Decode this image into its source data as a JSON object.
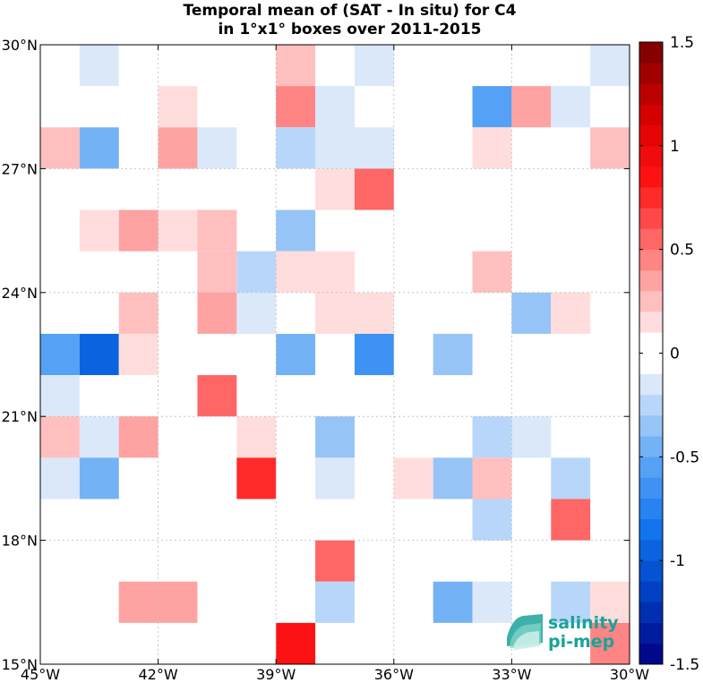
{
  "chart_data": {
    "type": "heatmap",
    "title": "Temporal mean of (SAT - In situ) for C4",
    "subtitle": "in 1°x1° boxes over 2011-2015",
    "xlabel": "",
    "ylabel": "",
    "x_ticks": [
      {
        "value": -45,
        "label": "45°W"
      },
      {
        "value": -42,
        "label": "42°W"
      },
      {
        "value": -39,
        "label": "39°W"
      },
      {
        "value": -36,
        "label": "36°W"
      },
      {
        "value": -33,
        "label": "33°W"
      },
      {
        "value": -30,
        "label": "30°W"
      }
    ],
    "y_ticks": [
      {
        "value": 15,
        "label": "15°N"
      },
      {
        "value": 18,
        "label": "18°N"
      },
      {
        "value": 21,
        "label": "21°N"
      },
      {
        "value": 24,
        "label": "24°N"
      },
      {
        "value": 27,
        "label": "27°N"
      },
      {
        "value": 30,
        "label": "30°N"
      }
    ],
    "xlim": [
      -45,
      -30
    ],
    "ylim": [
      15,
      30
    ],
    "grid": true,
    "colorbar": {
      "vmin": -1.5,
      "vmax": 1.5,
      "step": 0.1,
      "ticks": [
        {
          "value": 1.5,
          "label": "1.5"
        },
        {
          "value": 1.0,
          "label": "1"
        },
        {
          "value": 0.5,
          "label": "0.5"
        },
        {
          "value": 0.0,
          "label": "0"
        },
        {
          "value": -0.5,
          "label": "-0.5"
        },
        {
          "value": -1.0,
          "label": "-1"
        },
        {
          "value": -1.5,
          "label": "-1.5"
        }
      ]
    },
    "cells": [
      {
        "lon": -44,
        "lat": 29,
        "value": -0.15
      },
      {
        "lon": -39,
        "lat": 29,
        "value": 0.25
      },
      {
        "lon": -37,
        "lat": 29,
        "value": -0.15
      },
      {
        "lon": -31,
        "lat": 29,
        "value": -0.15
      },
      {
        "lon": -42,
        "lat": 28,
        "value": 0.15
      },
      {
        "lon": -39,
        "lat": 28,
        "value": 0.45
      },
      {
        "lon": -38,
        "lat": 28,
        "value": -0.15
      },
      {
        "lon": -34,
        "lat": 28,
        "value": -0.55
      },
      {
        "lon": -33,
        "lat": 28,
        "value": 0.35
      },
      {
        "lon": -32,
        "lat": 28,
        "value": -0.15
      },
      {
        "lon": -45,
        "lat": 27,
        "value": 0.25
      },
      {
        "lon": -44,
        "lat": 27,
        "value": -0.45
      },
      {
        "lon": -42,
        "lat": 27,
        "value": 0.35
      },
      {
        "lon": -41,
        "lat": 27,
        "value": -0.15
      },
      {
        "lon": -39,
        "lat": 27,
        "value": -0.25
      },
      {
        "lon": -38,
        "lat": 27,
        "value": -0.15
      },
      {
        "lon": -37,
        "lat": 27,
        "value": -0.15
      },
      {
        "lon": -34,
        "lat": 27,
        "value": 0.15
      },
      {
        "lon": -31,
        "lat": 27,
        "value": 0.25
      },
      {
        "lon": -38,
        "lat": 26,
        "value": 0.15
      },
      {
        "lon": -37,
        "lat": 26,
        "value": 0.55
      },
      {
        "lon": -44,
        "lat": 25,
        "value": 0.15
      },
      {
        "lon": -43,
        "lat": 25,
        "value": 0.35
      },
      {
        "lon": -42,
        "lat": 25,
        "value": 0.15
      },
      {
        "lon": -41,
        "lat": 25,
        "value": 0.25
      },
      {
        "lon": -39,
        "lat": 25,
        "value": -0.35
      },
      {
        "lon": -41,
        "lat": 24,
        "value": 0.25
      },
      {
        "lon": -40,
        "lat": 24,
        "value": -0.25
      },
      {
        "lon": -39,
        "lat": 24,
        "value": 0.15
      },
      {
        "lon": -38,
        "lat": 24,
        "value": 0.15
      },
      {
        "lon": -34,
        "lat": 24,
        "value": 0.25
      },
      {
        "lon": -43,
        "lat": 23,
        "value": 0.25
      },
      {
        "lon": -41,
        "lat": 23,
        "value": 0.35
      },
      {
        "lon": -40,
        "lat": 23,
        "value": -0.15
      },
      {
        "lon": -38,
        "lat": 23,
        "value": 0.15
      },
      {
        "lon": -37,
        "lat": 23,
        "value": 0.15
      },
      {
        "lon": -33,
        "lat": 23,
        "value": -0.35
      },
      {
        "lon": -32,
        "lat": 23,
        "value": 0.15
      },
      {
        "lon": -45,
        "lat": 22,
        "value": -0.55
      },
      {
        "lon": -44,
        "lat": 22,
        "value": -0.95
      },
      {
        "lon": -43,
        "lat": 22,
        "value": 0.15
      },
      {
        "lon": -39,
        "lat": 22,
        "value": -0.45
      },
      {
        "lon": -37,
        "lat": 22,
        "value": -0.65
      },
      {
        "lon": -35,
        "lat": 22,
        "value": -0.35
      },
      {
        "lon": -45,
        "lat": 21,
        "value": -0.15
      },
      {
        "lon": -41,
        "lat": 21,
        "value": 0.55
      },
      {
        "lon": -45,
        "lat": 20,
        "value": 0.25
      },
      {
        "lon": -44,
        "lat": 20,
        "value": -0.15
      },
      {
        "lon": -43,
        "lat": 20,
        "value": 0.35
      },
      {
        "lon": -40,
        "lat": 20,
        "value": 0.15
      },
      {
        "lon": -38,
        "lat": 20,
        "value": -0.35
      },
      {
        "lon": -34,
        "lat": 20,
        "value": -0.25
      },
      {
        "lon": -33,
        "lat": 20,
        "value": -0.15
      },
      {
        "lon": -45,
        "lat": 19,
        "value": -0.15
      },
      {
        "lon": -44,
        "lat": 19,
        "value": -0.45
      },
      {
        "lon": -40,
        "lat": 19,
        "value": 0.75
      },
      {
        "lon": -38,
        "lat": 19,
        "value": -0.15
      },
      {
        "lon": -36,
        "lat": 19,
        "value": 0.15
      },
      {
        "lon": -35,
        "lat": 19,
        "value": -0.35
      },
      {
        "lon": -34,
        "lat": 19,
        "value": 0.25
      },
      {
        "lon": -32,
        "lat": 19,
        "value": -0.25
      },
      {
        "lon": -34,
        "lat": 18,
        "value": -0.25
      },
      {
        "lon": -32,
        "lat": 18,
        "value": 0.55
      },
      {
        "lon": -38,
        "lat": 17,
        "value": 0.55
      },
      {
        "lon": -43,
        "lat": 16,
        "value": 0.35
      },
      {
        "lon": -42,
        "lat": 16,
        "value": 0.35
      },
      {
        "lon": -38,
        "lat": 16,
        "value": -0.25
      },
      {
        "lon": -35,
        "lat": 16,
        "value": -0.45
      },
      {
        "lon": -34,
        "lat": 16,
        "value": -0.15
      },
      {
        "lon": -32,
        "lat": 16,
        "value": -0.25
      },
      {
        "lon": -31,
        "lat": 16,
        "value": 0.15
      },
      {
        "lon": -39,
        "lat": 15,
        "value": 0.85
      },
      {
        "lon": -31,
        "lat": 15,
        "value": 0.45
      }
    ]
  },
  "logo": {
    "line1": "salinity",
    "line2": "pi-mep",
    "color": "#1aa39b"
  }
}
